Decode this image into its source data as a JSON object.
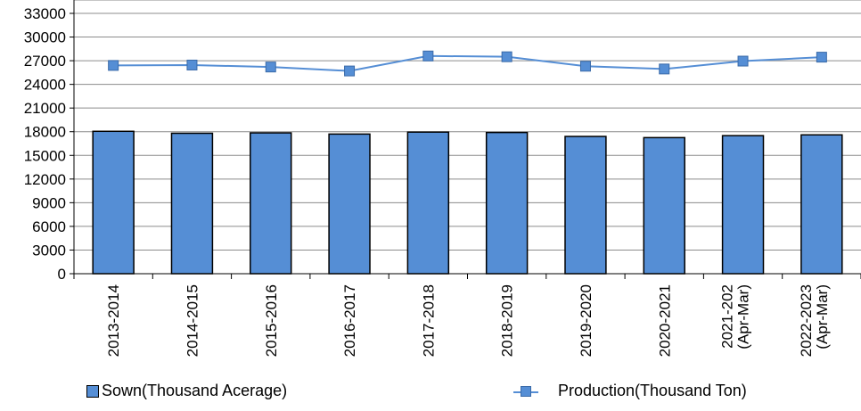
{
  "chart_data": {
    "type": "bar",
    "categories": [
      "2013-2014",
      "2014-2015",
      "2015-2016",
      "2016-2017",
      "2017-2018",
      "2018-2019",
      "2019-2020",
      "2020-2021",
      [
        "2021-202",
        "(Apr-Mar)"
      ],
      [
        "2022-2023",
        "(Apr-Mar)"
      ]
    ],
    "series": [
      {
        "name": "Sown(Thousand Acerage)",
        "type": "bar",
        "values": [
          18050,
          17800,
          17850,
          17700,
          17950,
          17900,
          17400,
          17250,
          17500,
          17600
        ]
      },
      {
        "name": "Production(Thousand Ton)",
        "type": "line",
        "values": [
          26400,
          26450,
          26200,
          25700,
          27600,
          27500,
          26300,
          25950,
          26950,
          27450
        ]
      }
    ],
    "ylim": [
      0,
      33000
    ],
    "yticks": [
      0,
      3000,
      6000,
      9000,
      12000,
      15000,
      18000,
      21000,
      24000,
      27000,
      30000,
      33000
    ],
    "grid": true,
    "legend_position": "bottom",
    "colors": {
      "bar_fill": "#558ed5",
      "bar_edge": "#000000",
      "line": "#558ed5",
      "grid": "#8c8c8c"
    }
  }
}
